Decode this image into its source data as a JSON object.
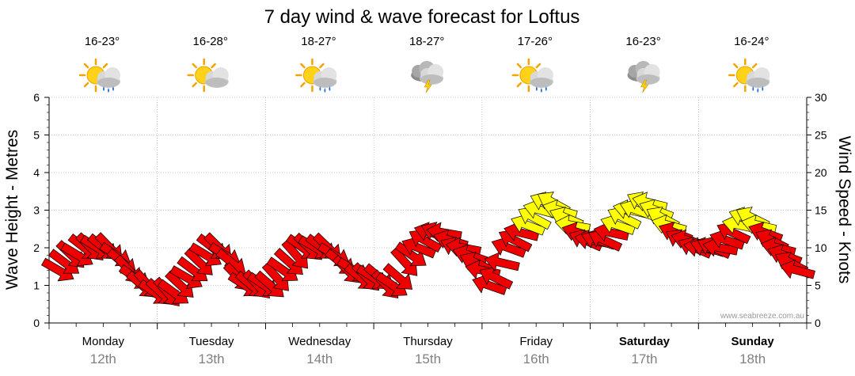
{
  "chart_data": {
    "type": "line",
    "title": "7 day wind & wave forecast for Loftus",
    "ylabel": "Wave Height - Metres",
    "y2label": "Wind Speed - Knots",
    "ylim": [
      0,
      6
    ],
    "y2lim": [
      0,
      30
    ],
    "yticks": [
      "0",
      "1",
      "2",
      "3",
      "4",
      "5",
      "6"
    ],
    "y2ticks": [
      "0",
      "5",
      "10",
      "15",
      "20",
      "25",
      "30"
    ],
    "credit": "www.seabreeze.com.au",
    "days": [
      {
        "name": "Monday",
        "date": "12th",
        "temp": "16-23°",
        "icon": "sun-cloud-rain-icon",
        "bold": false
      },
      {
        "name": "Tuesday",
        "date": "13th",
        "temp": "16-28°",
        "icon": "sun-cloud-icon",
        "bold": false
      },
      {
        "name": "Wednesday",
        "date": "14th",
        "temp": "18-27°",
        "icon": "sun-cloud-rain-icon",
        "bold": false
      },
      {
        "name": "Thursday",
        "date": "15th",
        "temp": "18-27°",
        "icon": "storm-icon",
        "bold": false
      },
      {
        "name": "Friday",
        "date": "16th",
        "temp": "17-26°",
        "icon": "sun-cloud-rain-icon",
        "bold": false
      },
      {
        "name": "Saturday",
        "date": "17th",
        "temp": "16-23°",
        "icon": "storm-icon",
        "bold": true
      },
      {
        "name": "Sunday",
        "date": "18th",
        "temp": "16-24°",
        "icon": "sun-cloud-rain-icon",
        "bold": true
      }
    ],
    "colors": {
      "low": "#ee0000",
      "high": "#ffff00",
      "outline": "#000000",
      "grid": "#999999"
    },
    "wind_knots": [
      7,
      8,
      9,
      9,
      10,
      10,
      10,
      10,
      10,
      9,
      8,
      7,
      6,
      5,
      5,
      4,
      4,
      4,
      4,
      5,
      6,
      7,
      8,
      9,
      10,
      10,
      9,
      8,
      6,
      5,
      5,
      5,
      5,
      5,
      6,
      7,
      8,
      9,
      10,
      10,
      10,
      10,
      10,
      9,
      8,
      7,
      7,
      6,
      6,
      6,
      6,
      5,
      5,
      6,
      8,
      9,
      10,
      11,
      12,
      12,
      12,
      11,
      10,
      10,
      9,
      8,
      7,
      5,
      6,
      8,
      10,
      11,
      12,
      13,
      14,
      15,
      16,
      16,
      15,
      14,
      13,
      12,
      11,
      11,
      11,
      11,
      12,
      13,
      14,
      15,
      15,
      16,
      16,
      15,
      14,
      13,
      12,
      11,
      11,
      10,
      10,
      10,
      10,
      10,
      11,
      12,
      13,
      14,
      14,
      13,
      12,
      11,
      10,
      9,
      8,
      7
    ],
    "wind_direction_deg": [
      40,
      40,
      40,
      40,
      40,
      40,
      40,
      40,
      40,
      40,
      40,
      40,
      40,
      40,
      40,
      40,
      40,
      40,
      40,
      40,
      40,
      40,
      40,
      40,
      40,
      40,
      40,
      40,
      40,
      40,
      40,
      40,
      40,
      40,
      40,
      40,
      40,
      40,
      40,
      40,
      40,
      40,
      40,
      40,
      40,
      40,
      40,
      40,
      40,
      40,
      40,
      40,
      40,
      40,
      40,
      40,
      200,
      200,
      200,
      200,
      200,
      200,
      200,
      200,
      200,
      200,
      200,
      200,
      200,
      200,
      200,
      200,
      200,
      200,
      200,
      200,
      200,
      200,
      200,
      200,
      200,
      200,
      200,
      200,
      200,
      200,
      200,
      200,
      200,
      200,
      200,
      200,
      200,
      200,
      200,
      200,
      200,
      200,
      200,
      200,
      200,
      200,
      200,
      200,
      200,
      200,
      200,
      200,
      200,
      200,
      200,
      200,
      200,
      200,
      200,
      200,
      200,
      200,
      200,
      200,
      200,
      200,
      200,
      200
    ]
  }
}
